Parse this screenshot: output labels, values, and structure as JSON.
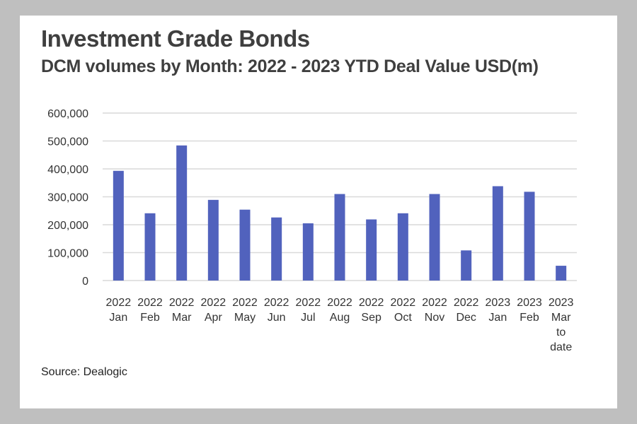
{
  "title": "Investment Grade Bonds",
  "subtitle": "DCM volumes by Month: 2022 - 2023 YTD Deal Value USD(m)",
  "source": "Source: Dealogic",
  "chart_data": {
    "type": "bar",
    "categories": [
      [
        "2022",
        "Jan"
      ],
      [
        "2022",
        "Feb"
      ],
      [
        "2022",
        "Mar"
      ],
      [
        "2022",
        "Apr"
      ],
      [
        "2022",
        "May"
      ],
      [
        "2022",
        "Jun"
      ],
      [
        "2022",
        "Jul"
      ],
      [
        "2022",
        "Aug"
      ],
      [
        "2022",
        "Sep"
      ],
      [
        "2022",
        "Oct"
      ],
      [
        "2022",
        "Nov"
      ],
      [
        "2022",
        "Dec"
      ],
      [
        "2023",
        "Jan"
      ],
      [
        "2023",
        "Feb"
      ],
      [
        "2023",
        "Mar",
        "to",
        "date"
      ]
    ],
    "values": [
      393000,
      241000,
      484000,
      289000,
      254000,
      226000,
      205000,
      310000,
      219000,
      241000,
      310000,
      108000,
      338000,
      318000,
      53000
    ],
    "ylim": [
      0,
      600000
    ],
    "yticks": [
      0,
      100000,
      200000,
      300000,
      400000,
      500000,
      600000
    ],
    "ytick_labels": [
      "0",
      "100,000",
      "200,000",
      "300,000",
      "400,000",
      "500,000",
      "600,000"
    ],
    "grid": true,
    "legend": "none",
    "bar_color": "#5162bd",
    "grid_color": "#d9d9d9"
  }
}
